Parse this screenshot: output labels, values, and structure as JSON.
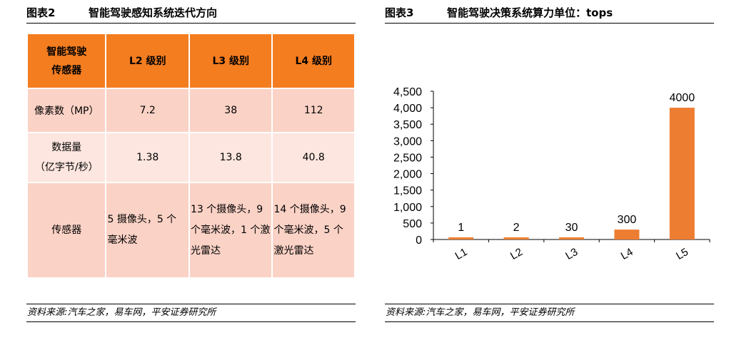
{
  "left_figure": {
    "label": "图表2",
    "title": "智能驾驶感知系统迭代方向",
    "table": {
      "headers": [
        "智能驾驶\n传感器",
        "L2 级别",
        "L3 级别",
        "L4 级别"
      ],
      "rows": [
        {
          "label": "像素数（MP）",
          "values": [
            "7.2",
            "38",
            "112"
          ]
        },
        {
          "label": "数据量\n（亿字节/秒）",
          "values": [
            "1.38",
            "13.8",
            "40.8"
          ]
        },
        {
          "label": "传感器",
          "values": [
            "5 摄像头，5 个\n毫米波",
            "13 个摄像头，9\n个毫米波，1 个激\n光雷达",
            "14 个摄像头，9\n个毫米波，5 个\n激光雷达"
          ]
        }
      ]
    },
    "source": "资料来源:汽车之家，易车网，平安证券研究所"
  },
  "right_figure": {
    "label": "图表3",
    "title": "智能驾驶决策系统算力单位：tops",
    "source": "资料来源:汽车之家，易车网，平安证券研究所"
  },
  "chart_data": {
    "type": "bar",
    "categories": [
      "L1",
      "L2",
      "L3",
      "L4",
      "L5"
    ],
    "values": [
      1,
      2,
      30,
      300,
      4000
    ],
    "data_labels": [
      "1",
      "2",
      "30",
      "300",
      "4000"
    ],
    "title": "智能驾驶决策系统算力单位：tops",
    "xlabel": "",
    "ylabel": "",
    "ylim": [
      0,
      4500
    ],
    "yticks": [
      "0",
      "500",
      "1,000",
      "1,500",
      "2,000",
      "2,500",
      "3,000",
      "3,500",
      "4,000",
      "4,500"
    ],
    "bar_color": "#ed7d31",
    "grid": false,
    "legend": "none"
  }
}
